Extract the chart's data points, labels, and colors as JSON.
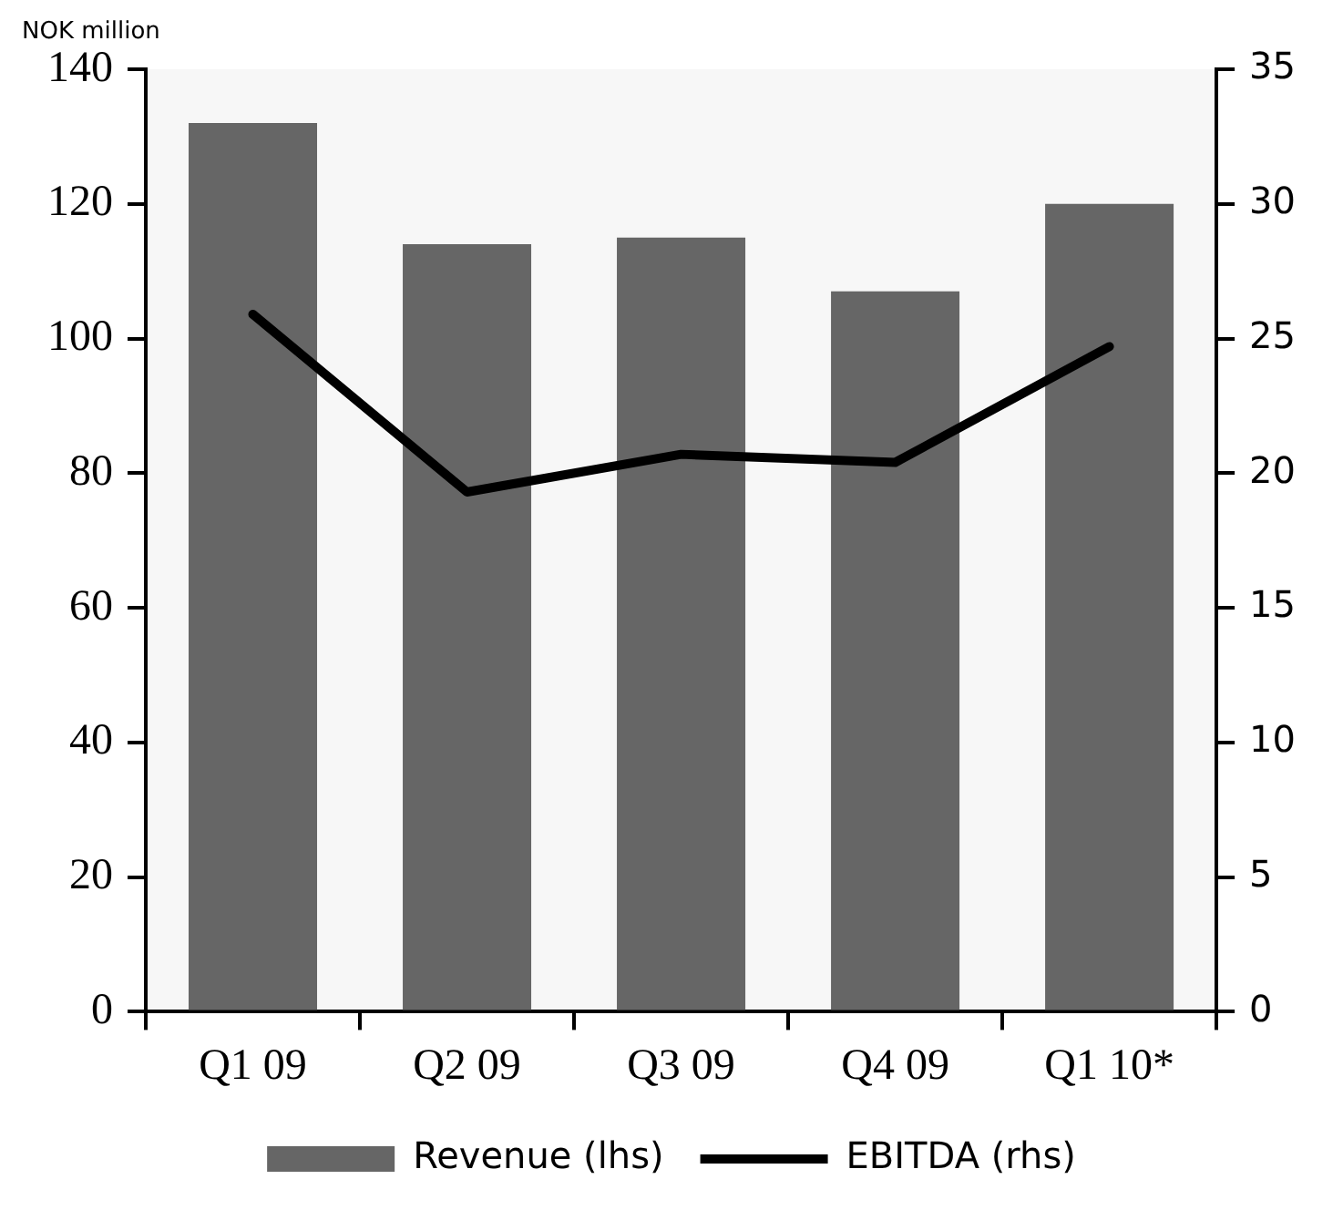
{
  "chart_data": {
    "type": "bar",
    "ylabel": "NOK million",
    "categories": [
      "Q1 09",
      "Q2 09",
      "Q3 09",
      "Q4 09",
      "Q1 10*"
    ],
    "series": [
      {
        "name": "Revenue (lhs)",
        "color": "#666666",
        "values": [
          132,
          114,
          115,
          107,
          120
        ]
      },
      {
        "name": "EBITDA (rhs)",
        "type": "line",
        "axis": "y2",
        "color": "#000000",
        "values": [
          25.9,
          19.3,
          20.7,
          20.4,
          24.7
        ]
      }
    ],
    "ylim": [
      0,
      140
    ],
    "yticks": [
      0,
      20,
      40,
      60,
      80,
      100,
      120,
      140
    ],
    "y2lim": [
      0,
      35
    ],
    "y2ticks": [
      0,
      5,
      10,
      15,
      20,
      25,
      30,
      35
    ],
    "grid": false,
    "legend": "bottom",
    "marker": "none",
    "line_style": "solid"
  }
}
